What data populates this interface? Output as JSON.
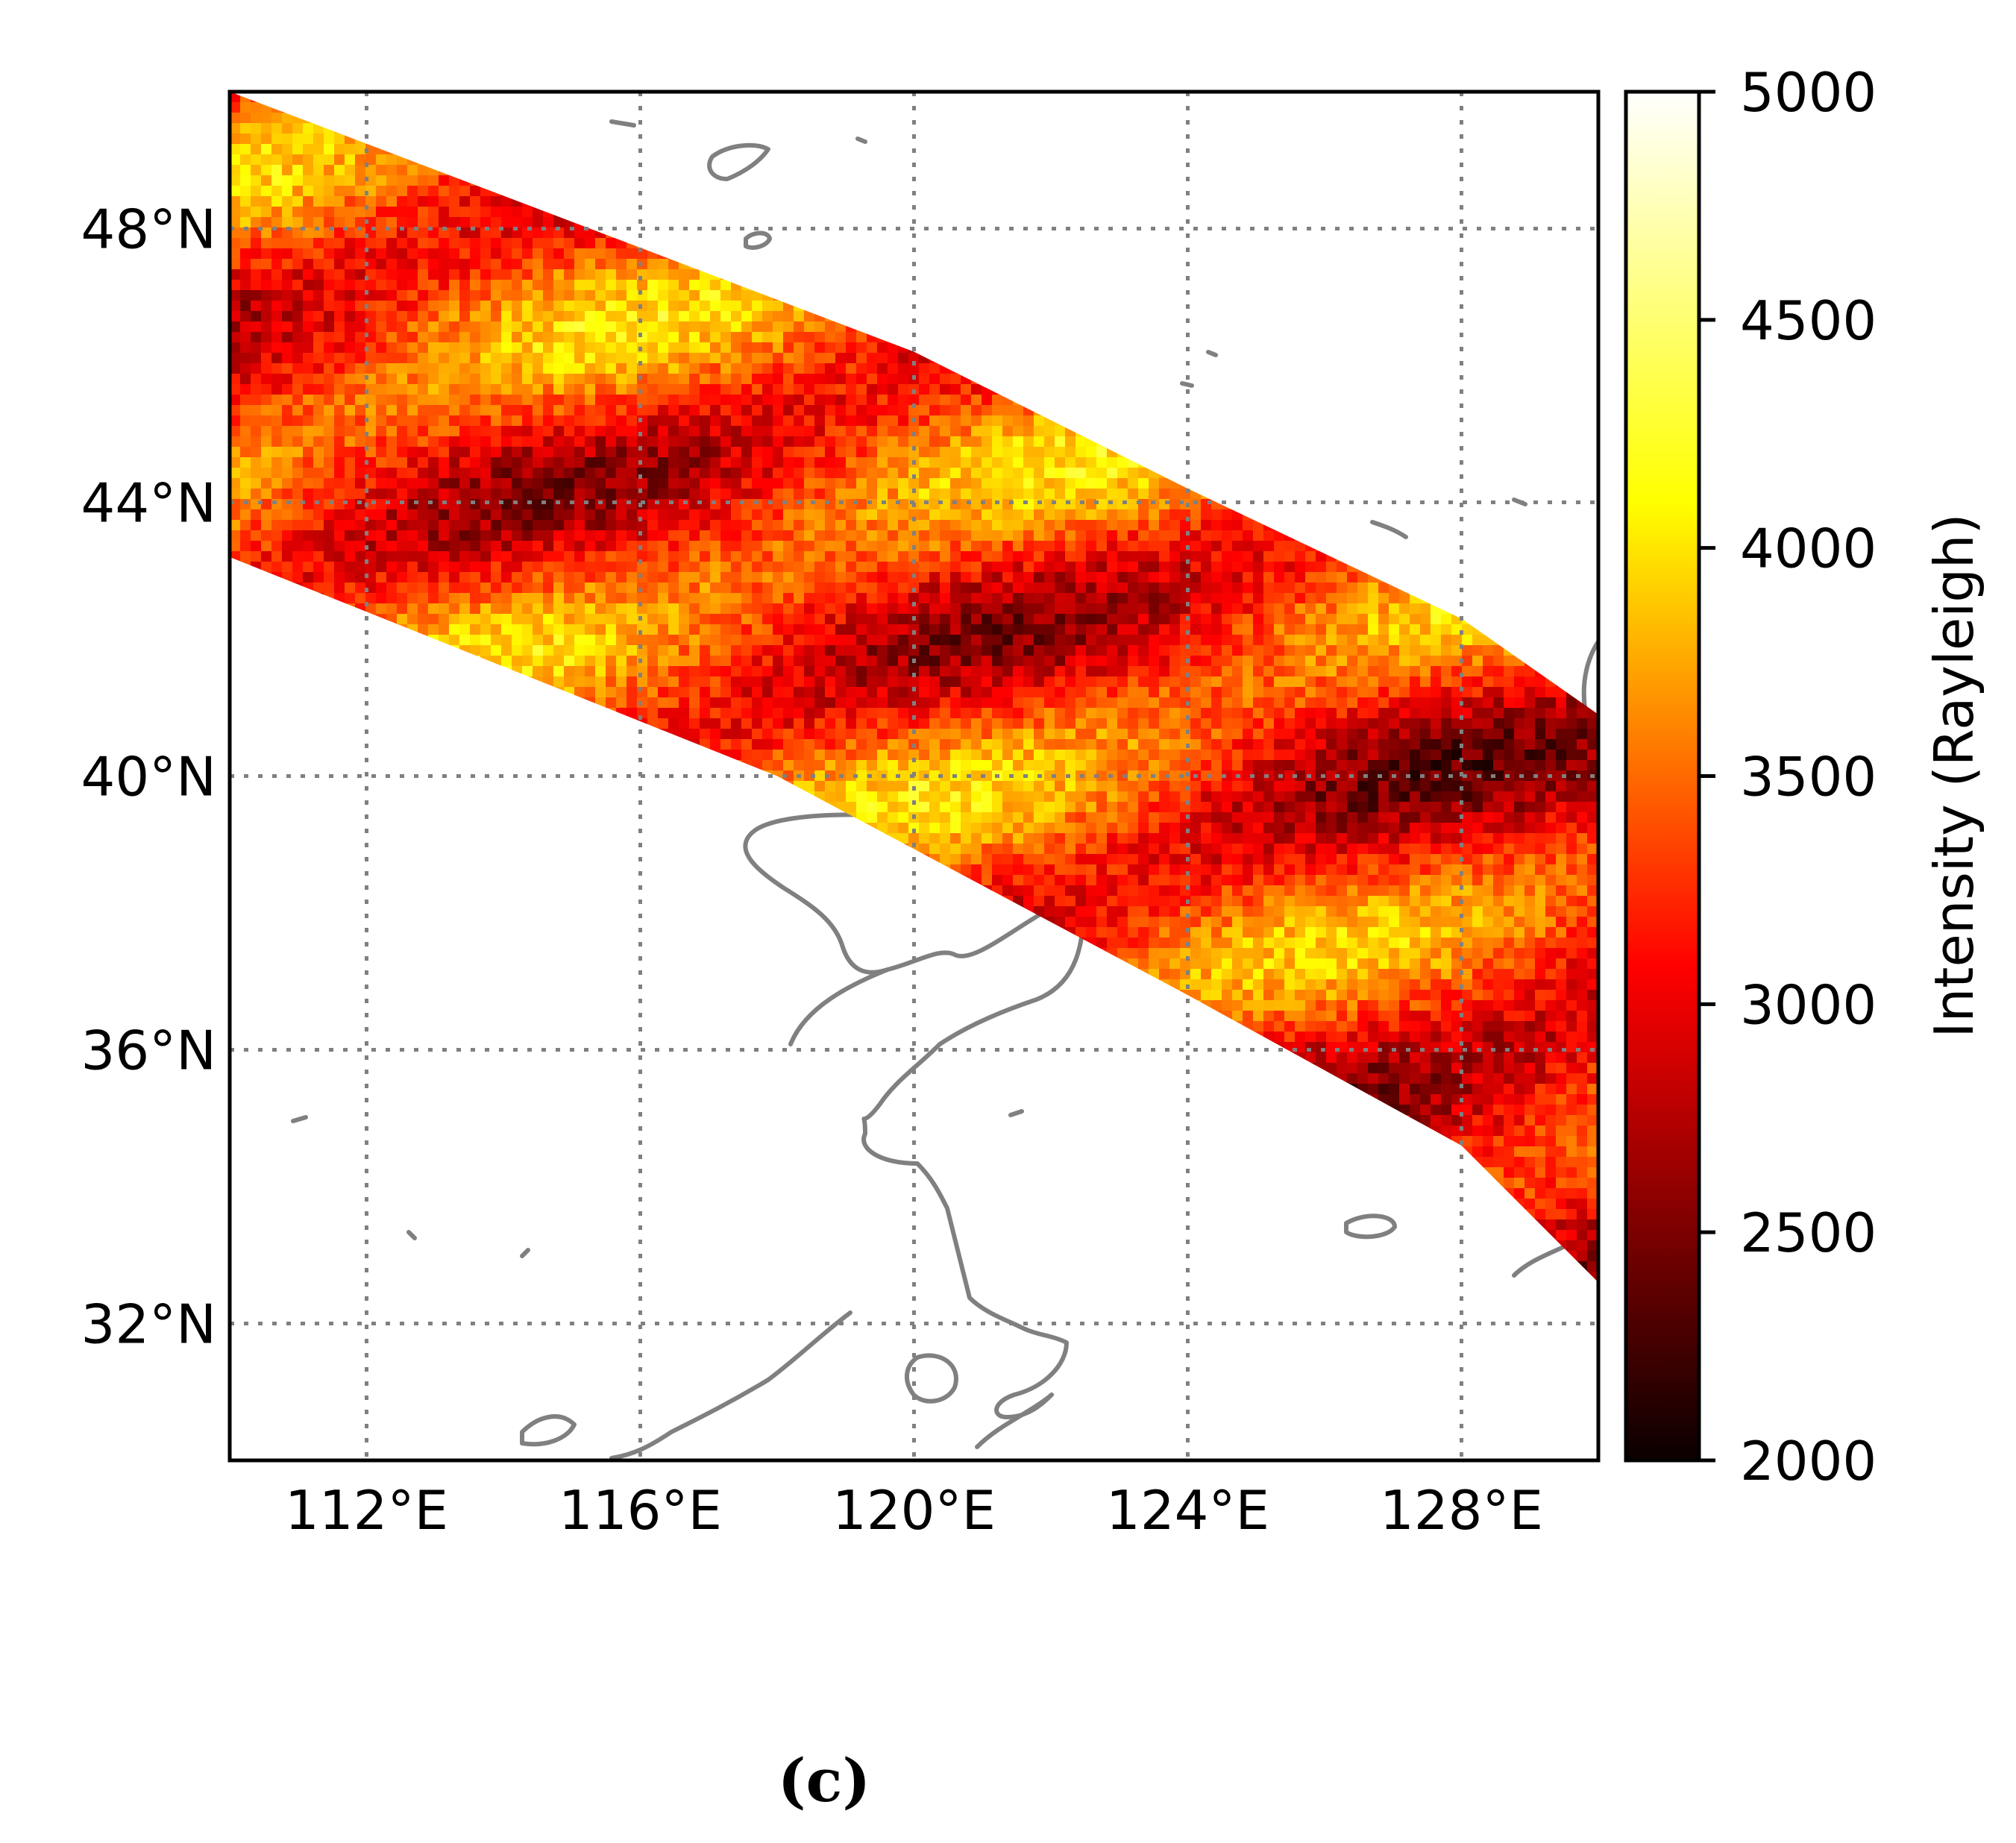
{
  "chart_data": {
    "type": "heatmap",
    "title": "",
    "xlabel": "",
    "ylabel": "",
    "x_ticks": [
      {
        "value": 112,
        "label": "112°E"
      },
      {
        "value": 116,
        "label": "116°E"
      },
      {
        "value": 120,
        "label": "120°E"
      },
      {
        "value": 124,
        "label": "124°E"
      },
      {
        "value": 128,
        "label": "128°E"
      }
    ],
    "y_ticks": [
      {
        "value": 48,
        "label": "48°N"
      },
      {
        "value": 44,
        "label": "44°N"
      },
      {
        "value": 40,
        "label": "40°N"
      },
      {
        "value": 36,
        "label": "36°N"
      },
      {
        "value": 32,
        "label": "32°N"
      }
    ],
    "xlim": [
      110,
      130
    ],
    "ylim": [
      30,
      50
    ],
    "grid": true,
    "colorbar": {
      "label": "Intensity (Rayleigh)",
      "colormap": "hot",
      "range": [
        2000,
        5000
      ],
      "ticks": [
        {
          "value": 5000,
          "label": "5000"
        },
        {
          "value": 4500,
          "label": "4500"
        },
        {
          "value": 4000,
          "label": "4000"
        },
        {
          "value": 3500,
          "label": "3500"
        },
        {
          "value": 3000,
          "label": "3000"
        },
        {
          "value": 2500,
          "label": "2500"
        },
        {
          "value": 2000,
          "label": "2000"
        }
      ]
    },
    "swath": {
      "description_lon_lat": "observation swath from NW to SE",
      "upper_edge": [
        [
          110,
          50.0
        ],
        [
          120,
          46.2
        ],
        [
          124,
          44.2
        ],
        [
          128,
          42.3
        ],
        [
          130,
          40.9
        ]
      ],
      "lower_edge": [
        [
          110,
          43.2
        ],
        [
          118,
          40.0
        ],
        [
          124,
          36.8
        ],
        [
          128,
          34.6
        ],
        [
          130,
          32.6
        ]
      ]
    }
  },
  "panel_label": "(c)"
}
